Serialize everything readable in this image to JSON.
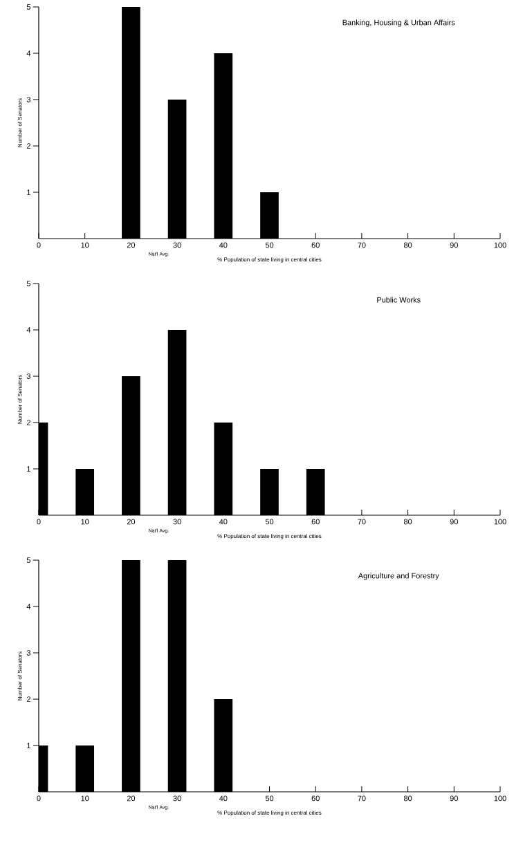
{
  "chart_data": [
    {
      "type": "bar",
      "title": "Banking, Housing & Urban Affairs",
      "xlabel": "% Population of state living in central cities",
      "ylabel": "Number of Senators",
      "x": [
        20,
        30,
        40,
        50
      ],
      "values": [
        5,
        3,
        4,
        1
      ],
      "color": "#000000",
      "xlim": [
        0,
        100
      ],
      "ylim": [
        0,
        5
      ],
      "xticks": [
        0,
        10,
        20,
        30,
        40,
        50,
        60,
        70,
        80,
        90,
        100
      ],
      "yticks": [
        1,
        2,
        3,
        4,
        5
      ],
      "annotations": [
        "Nat'l Avg."
      ]
    },
    {
      "type": "bar",
      "title": "Public Works",
      "xlabel": "% Population of state living in central cities",
      "ylabel": "Number of Senators",
      "x": [
        0,
        10,
        20,
        30,
        40,
        50,
        60
      ],
      "values": [
        2,
        1,
        3,
        4,
        2,
        1,
        1
      ],
      "color": "#000000",
      "xlim": [
        0,
        100
      ],
      "ylim": [
        0,
        5
      ],
      "xticks": [
        0,
        10,
        20,
        30,
        40,
        50,
        60,
        70,
        80,
        90,
        100
      ],
      "yticks": [
        1,
        2,
        3,
        4,
        5
      ],
      "annotations": [
        "Nat'l Avg."
      ]
    },
    {
      "type": "bar",
      "title": "Agriculture and Forestry",
      "xlabel": "% Population of state living in central cities",
      "ylabel": "Number of Senators",
      "x": [
        0,
        10,
        20,
        30,
        40
      ],
      "values": [
        1,
        1,
        5,
        5,
        2
      ],
      "color": "#000000",
      "xlim": [
        0,
        100
      ],
      "ylim": [
        0,
        5
      ],
      "xticks": [
        0,
        10,
        20,
        30,
        40,
        50,
        60,
        70,
        80,
        90,
        100
      ],
      "yticks": [
        1,
        2,
        3,
        4,
        5
      ],
      "annotations": [
        "Nat'l Avg."
      ]
    }
  ]
}
